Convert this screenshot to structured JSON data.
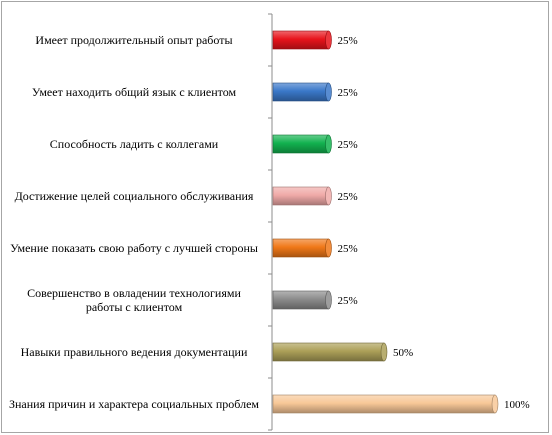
{
  "chart_data": {
    "type": "bar",
    "orientation": "horizontal",
    "categories": [
      "Имеет продолжительный опыт работы",
      "Умеет находить общий язык с клиентом",
      "Способность ладить с коллегами",
      "Достижение целей социального обслуживания",
      "Умение показать свою работу с лучшей стороны",
      "Совершенство в овладении технологиями работы с клиентом",
      "Навыки правильного ведения документации",
      "Знания причин и характера социальных проблем"
    ],
    "values": [
      25,
      25,
      25,
      25,
      25,
      25,
      50,
      100
    ],
    "value_labels": [
      "25%",
      "25%",
      "25%",
      "25%",
      "25%",
      "25%",
      "50%",
      "100%"
    ],
    "colors": [
      "#e8141b",
      "#3a78c9",
      "#12b24f",
      "#f0aaa8",
      "#f07818",
      "#8c8c8c",
      "#aca058",
      "#f8c898"
    ],
    "xlim": [
      0,
      100
    ],
    "grid": false,
    "legend": "none",
    "title": "",
    "xlabel": "",
    "ylabel": ""
  }
}
